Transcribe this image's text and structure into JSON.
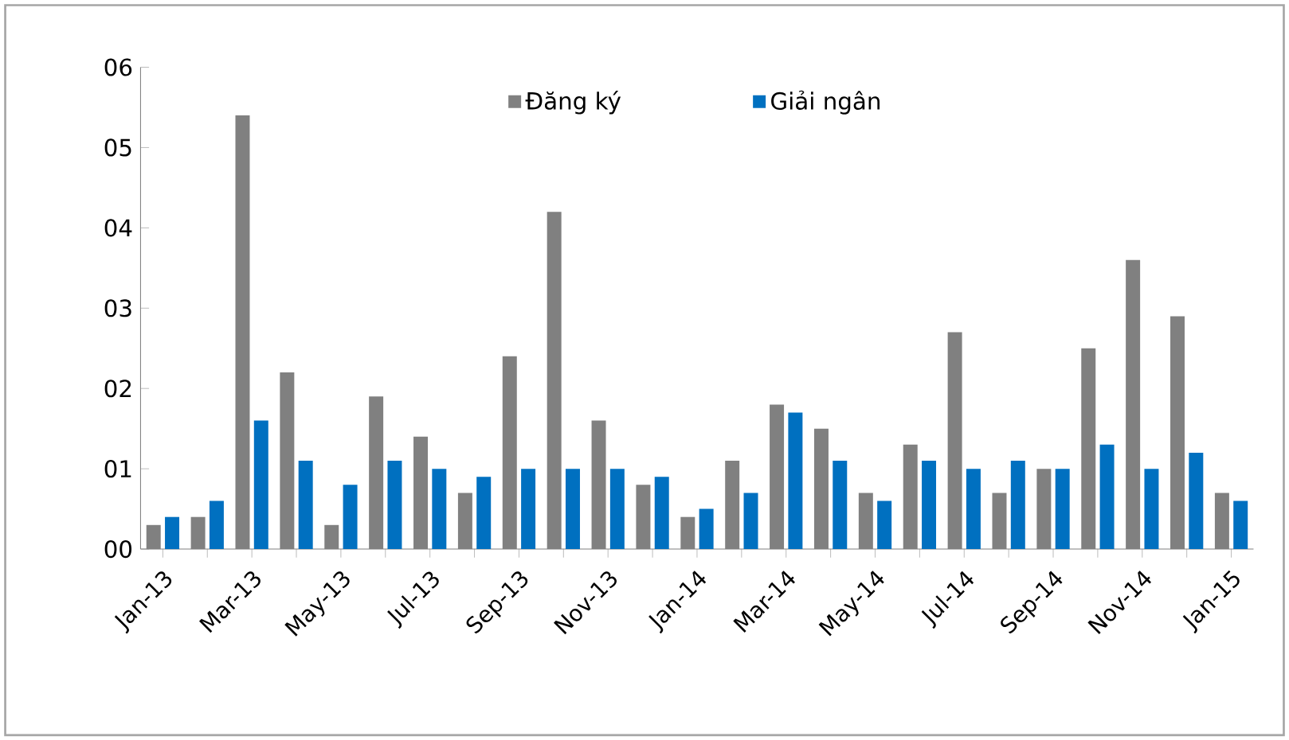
{
  "chart_data": {
    "type": "bar",
    "categories": [
      "Jan-13",
      null,
      "Mar-13",
      null,
      "May-13",
      null,
      "Jul-13",
      null,
      "Sep-13",
      null,
      "Nov-13",
      null,
      "Jan-14",
      null,
      "Mar-14",
      null,
      "May-14",
      null,
      "Jul-14",
      null,
      "Sep-14",
      null,
      "Nov-14",
      null,
      "Jan-15"
    ],
    "series": [
      {
        "name": "Đăng ký",
        "color": "#808080",
        "values": [
          0.3,
          0.4,
          5.4,
          2.2,
          0.3,
          1.9,
          1.4,
          0.7,
          2.4,
          4.2,
          1.6,
          0.8,
          0.4,
          1.1,
          1.8,
          1.5,
          0.7,
          1.3,
          2.7,
          0.7,
          1.0,
          2.5,
          3.6,
          2.9,
          0.7
        ]
      },
      {
        "name": "Giải ngân",
        "color": "#0070c0",
        "values": [
          0.4,
          0.6,
          1.6,
          1.1,
          0.8,
          1.1,
          1.0,
          0.9,
          1.0,
          1.0,
          1.0,
          0.9,
          0.5,
          0.7,
          1.7,
          1.1,
          0.6,
          1.1,
          1.0,
          1.1,
          1.0,
          1.3,
          1.0,
          1.2,
          0.6
        ]
      }
    ],
    "ylim": [
      0,
      6
    ],
    "yticks": [
      {
        "value": 0,
        "label": "00"
      },
      {
        "value": 1,
        "label": "01"
      },
      {
        "value": 2,
        "label": "02"
      },
      {
        "value": 3,
        "label": "03"
      },
      {
        "value": 4,
        "label": "04"
      },
      {
        "value": 5,
        "label": "05"
      },
      {
        "value": 6,
        "label": "06"
      }
    ],
    "legend": "top"
  }
}
